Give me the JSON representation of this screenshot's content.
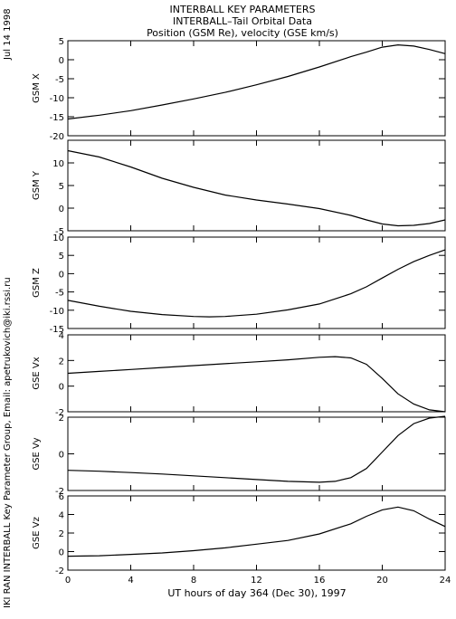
{
  "header": {
    "title_line1": "INTERBALL KEY PARAMETERS",
    "title_line2": "INTERBALL–Tail Orbital Data",
    "title_line3": "Position (GSM Re), velocity (GSE km/s)"
  },
  "side": {
    "date": "Jul 14 1998",
    "credit": "IKI RAN INTERBALL Key Parameter Group, Email: apetrukovich@iki.rssi.ru"
  },
  "chart_data": [
    {
      "type": "line",
      "ylabel": "GSM X",
      "ylim": [
        -20,
        5
      ],
      "yticks": [
        -20,
        -15,
        -10,
        -5,
        0,
        5
      ],
      "xlim": [
        0,
        24
      ],
      "x": [
        0,
        2,
        4,
        6,
        8,
        10,
        12,
        14,
        16,
        18,
        19,
        20,
        21,
        22,
        23,
        24
      ],
      "y": [
        -15.6,
        -14.6,
        -13.4,
        -11.9,
        -10.3,
        -8.6,
        -6.6,
        -4.4,
        -1.9,
        0.8,
        2.0,
        3.3,
        3.9,
        3.6,
        2.7,
        1.6
      ],
      "color": "#000000"
    },
    {
      "type": "line",
      "ylabel": "GSM Y",
      "ylim": [
        -5,
        15
      ],
      "yticks": [
        -5,
        0,
        5,
        10
      ],
      "xlim": [
        0,
        24
      ],
      "x": [
        0,
        2,
        4,
        6,
        8,
        10,
        12,
        14,
        16,
        18,
        19,
        20,
        21,
        22,
        23,
        24
      ],
      "y": [
        12.7,
        11.3,
        9.1,
        6.6,
        4.6,
        2.9,
        1.8,
        0.9,
        -0.1,
        -1.6,
        -2.6,
        -3.5,
        -3.9,
        -3.8,
        -3.4,
        -2.6
      ],
      "color": "#000000"
    },
    {
      "type": "line",
      "ylabel": "GSM Z",
      "ylim": [
        -15,
        10
      ],
      "yticks": [
        -15,
        -10,
        -5,
        0,
        5,
        10
      ],
      "xlim": [
        0,
        24
      ],
      "x": [
        0,
        2,
        4,
        6,
        8,
        9,
        10,
        12,
        14,
        16,
        18,
        19,
        20,
        21,
        22,
        23,
        24
      ],
      "y": [
        -7.3,
        -8.9,
        -10.3,
        -11.2,
        -11.7,
        -11.8,
        -11.7,
        -11.1,
        -9.9,
        -8.3,
        -5.5,
        -3.6,
        -1.2,
        1.2,
        3.3,
        5.0,
        6.5
      ],
      "color": "#000000"
    },
    {
      "type": "line",
      "ylabel": "GSE Vx",
      "ylim": [
        -2,
        4
      ],
      "yticks": [
        -2,
        0,
        2,
        4
      ],
      "xlim": [
        0,
        24
      ],
      "x": [
        0,
        2,
        4,
        6,
        8,
        10,
        12,
        14,
        16,
        17,
        18,
        19,
        20,
        21,
        22,
        23,
        24
      ],
      "y": [
        1.0,
        1.15,
        1.3,
        1.45,
        1.6,
        1.75,
        1.9,
        2.05,
        2.25,
        2.3,
        2.2,
        1.7,
        0.6,
        -0.6,
        -1.4,
        -1.85,
        -2.0
      ],
      "color": "#000000"
    },
    {
      "type": "line",
      "ylabel": "GSE Vy",
      "ylim": [
        -2,
        2
      ],
      "yticks": [
        -2,
        0,
        2
      ],
      "xlim": [
        0,
        24
      ],
      "x": [
        0,
        2,
        4,
        6,
        8,
        10,
        12,
        14,
        16,
        17,
        18,
        19,
        20,
        21,
        22,
        23,
        24
      ],
      "y": [
        -0.9,
        -0.95,
        -1.02,
        -1.1,
        -1.2,
        -1.3,
        -1.4,
        -1.5,
        -1.55,
        -1.5,
        -1.3,
        -0.8,
        0.1,
        1.0,
        1.65,
        1.95,
        2.05
      ],
      "color": "#000000"
    },
    {
      "type": "line",
      "ylabel": "GSE Vz",
      "ylim": [
        -2,
        6
      ],
      "yticks": [
        -2,
        0,
        2,
        4,
        6
      ],
      "xlim": [
        0,
        24
      ],
      "x": [
        0,
        2,
        4,
        6,
        8,
        10,
        12,
        14,
        16,
        18,
        19,
        20,
        21,
        22,
        23,
        24
      ],
      "y": [
        -0.5,
        -0.45,
        -0.3,
        -0.15,
        0.1,
        0.4,
        0.8,
        1.2,
        1.9,
        3.0,
        3.8,
        4.5,
        4.8,
        4.4,
        3.5,
        2.7
      ],
      "color": "#000000"
    }
  ],
  "xaxis": {
    "ticks": [
      0,
      4,
      8,
      12,
      16,
      20,
      24
    ],
    "label": "UT hours of day 364 (Dec 30), 1997"
  }
}
